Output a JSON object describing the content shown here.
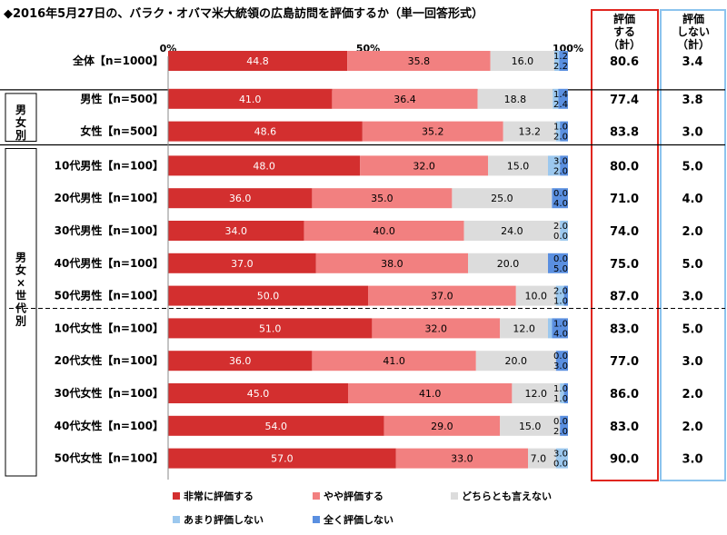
{
  "title": "◆2016年5月27日の、バラク・オバマ米大統領の広島訪問を評価するか（単一回答形式）",
  "colors": {
    "very_good": "#d32f2f",
    "somewhat_good": "#f28080",
    "neither": "#dcdcdc",
    "not_much": "#9cc8ee",
    "not_at_all": "#5a8fe0",
    "eval_box": "#e0261f",
    "noeval_box": "#8cc4ee"
  },
  "headers": {
    "eval": [
      "評価",
      "する",
      "（計）"
    ],
    "noeval": [
      "評価",
      "しない",
      "（計）"
    ]
  },
  "groups": {
    "gender": "男女別",
    "gender_age": "男女×世代別"
  },
  "chart_data": {
    "type": "bar",
    "stacked": true,
    "orientation": "horizontal",
    "xlim": [
      0,
      100
    ],
    "ticks": [
      "0%",
      "50%",
      "100%"
    ],
    "categories": [
      "全体【n=1000】",
      "男性【n=500】",
      "女性【n=500】",
      "10代男性【n=100】",
      "20代男性【n=100】",
      "30代男性【n=100】",
      "40代男性【n=100】",
      "50代男性【n=100】",
      "10代女性【n=100】",
      "20代女性【n=100】",
      "30代女性【n=100】",
      "40代女性【n=100】",
      "50代女性【n=100】"
    ],
    "series": [
      {
        "name": "非常に評価する",
        "values": [
          "44.8",
          "41.0",
          "48.6",
          "48.0",
          "36.0",
          "34.0",
          "37.0",
          "50.0",
          "51.0",
          "36.0",
          "45.0",
          "54.0",
          "57.0"
        ]
      },
      {
        "name": "やや評価する",
        "values": [
          "35.8",
          "36.4",
          "35.2",
          "32.0",
          "35.0",
          "40.0",
          "38.0",
          "37.0",
          "32.0",
          "41.0",
          "41.0",
          "29.0",
          "33.0"
        ]
      },
      {
        "name": "どちらとも言えない",
        "values": [
          "16.0",
          "18.8",
          "13.2",
          "15.0",
          "25.0",
          "24.0",
          "20.0",
          "10.0",
          "12.0",
          "20.0",
          "12.0",
          "15.0",
          "7.0"
        ]
      },
      {
        "name": "あまり評価しない",
        "values": [
          "1.2",
          "1.4",
          "1.0",
          "3.0",
          "0.0",
          "2.0",
          "0.0",
          "2.0",
          "1.0",
          "0.0",
          "1.0",
          "0.0",
          "3.0"
        ]
      },
      {
        "name": "全く評価しない",
        "values": [
          "2.2",
          "2.4",
          "2.0",
          "2.0",
          "4.0",
          "0.0",
          "5.0",
          "1.0",
          "4.0",
          "3.0",
          "1.0",
          "2.0",
          "0.0"
        ]
      }
    ],
    "eval_total": [
      "80.6",
      "77.4",
      "83.8",
      "80.0",
      "71.0",
      "74.0",
      "75.0",
      "87.0",
      "83.0",
      "77.0",
      "86.0",
      "83.0",
      "90.0"
    ],
    "noeval_total": [
      "3.4",
      "3.8",
      "3.0",
      "5.0",
      "4.0",
      "2.0",
      "5.0",
      "3.0",
      "5.0",
      "3.0",
      "2.0",
      "2.0",
      "3.0"
    ]
  }
}
